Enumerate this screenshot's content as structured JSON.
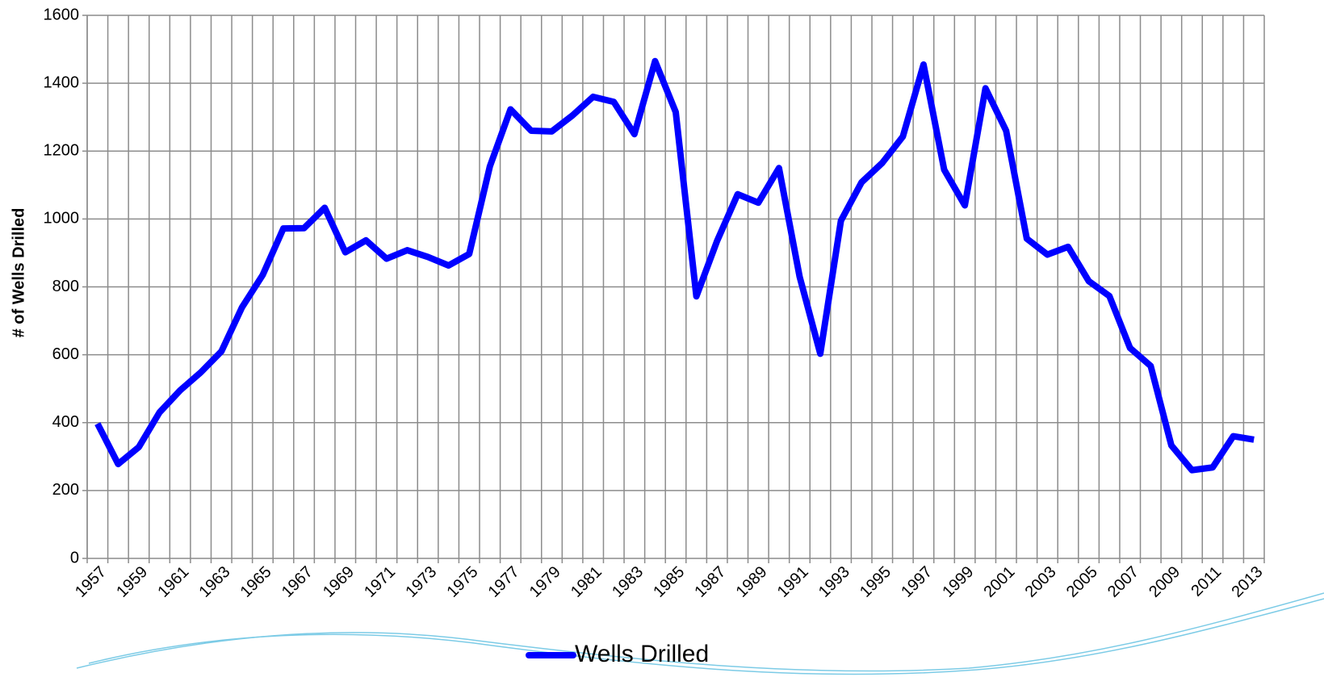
{
  "chart_data": {
    "type": "line",
    "y_label": "# of Wells Drilled",
    "categories": [
      "1957",
      null,
      "1959",
      null,
      "1961",
      null,
      "1963",
      null,
      "1965",
      null,
      "1967",
      null,
      "1969",
      null,
      "1971",
      null,
      "1973",
      null,
      "1975",
      null,
      "1977",
      null,
      "1979",
      null,
      "1981",
      null,
      "1983",
      null,
      "1985",
      null,
      "1987",
      null,
      "1989",
      null,
      "1991",
      null,
      "1993",
      null,
      "1995",
      null,
      "1997",
      null,
      "1999",
      null,
      "2001",
      null,
      "2003",
      null,
      "2005",
      null,
      "2007",
      null,
      "2009",
      null,
      "2011",
      null,
      "2013"
    ],
    "series": [
      {
        "name": "Wells Drilled",
        "color": "#0000ff",
        "values": [
          397,
          278,
          328,
          430,
          495,
          548,
          610,
          740,
          835,
          972,
          973,
          1033,
          902,
          937,
          883,
          908,
          888,
          863,
          897,
          1155,
          1323,
          1260,
          1258,
          1305,
          1360,
          1345,
          1250,
          1465,
          1315,
          772,
          935,
          1073,
          1048,
          1150,
          830,
          603,
          995,
          1108,
          1165,
          1243,
          1455,
          1145,
          1040,
          1385,
          1260,
          942,
          895,
          918,
          817,
          773,
          620,
          567,
          333,
          260,
          268,
          360,
          350
        ]
      }
    ],
    "ylim": [
      0,
      1600
    ],
    "yticks": [
      0,
      200,
      400,
      600,
      800,
      1000,
      1200,
      1400,
      1600
    ],
    "grid": true,
    "legend": "bottom"
  }
}
